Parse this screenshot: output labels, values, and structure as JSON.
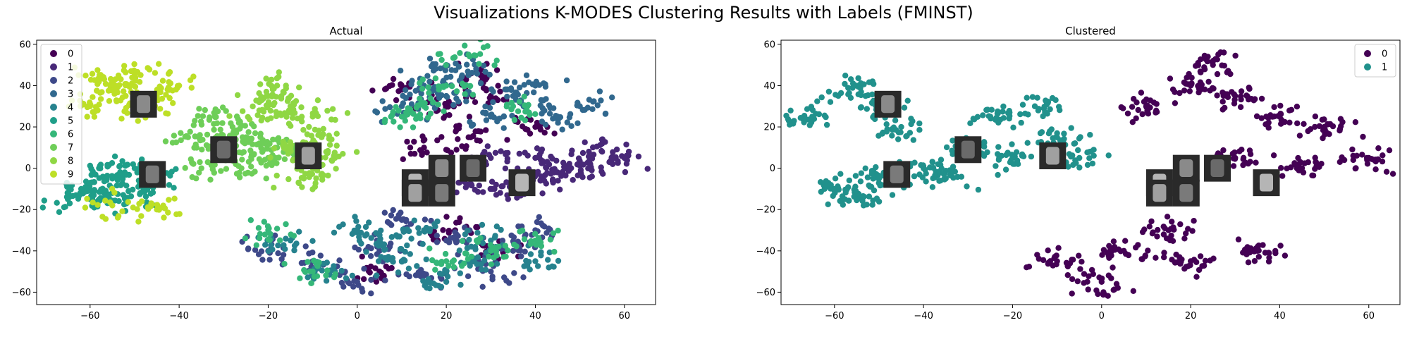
{
  "suptitle": "Visualizations K-MODES Clustering Results with Labels (FMINST)",
  "chart_data": [
    {
      "type": "scatter",
      "title": "Actual",
      "xlabel": "",
      "ylabel": "",
      "xlim": [
        -72,
        67
      ],
      "ylim": [
        -66,
        62
      ],
      "xticks": [
        -60,
        -40,
        -20,
        0,
        20,
        40,
        60
      ],
      "yticks": [
        -60,
        -40,
        -20,
        0,
        20,
        40,
        60
      ],
      "grid": false,
      "legend_position": "top-left",
      "legend": [
        "0",
        "1",
        "2",
        "3",
        "4",
        "5",
        "6",
        "7",
        "8",
        "9"
      ],
      "colors": [
        "#440154",
        "#482878",
        "#3e4989",
        "#31688e",
        "#26828e",
        "#1f9e89",
        "#35b779",
        "#6ece58",
        "#8fd744",
        "#bddf26"
      ],
      "clusters": [
        {
          "label": "0",
          "points": [
            [
              30,
              35
            ],
            [
              10,
              38
            ],
            [
              25,
              15
            ],
            [
              20,
              30
            ],
            [
              40,
              20
            ],
            [
              5,
              -50
            ],
            [
              30,
              -40
            ],
            [
              22,
              -30
            ],
            [
              15,
              10
            ],
            [
              28,
              45
            ]
          ]
        },
        {
          "label": "1",
          "points": [
            [
              30,
              5
            ],
            [
              40,
              5
            ],
            [
              50,
              3
            ],
            [
              55,
              8
            ],
            [
              60,
              5
            ],
            [
              45,
              -2
            ],
            [
              35,
              -10
            ],
            [
              25,
              -8
            ],
            [
              52,
              0
            ],
            [
              42,
              -6
            ]
          ]
        },
        {
          "label": "2",
          "points": [
            [
              5,
              -40
            ],
            [
              20,
              -35
            ],
            [
              35,
              -40
            ],
            [
              -10,
              -45
            ],
            [
              0,
              -55
            ],
            [
              30,
              -50
            ],
            [
              15,
              -52
            ],
            [
              -20,
              -40
            ],
            [
              40,
              -30
            ],
            [
              10,
              -25
            ]
          ]
        },
        {
          "label": "3",
          "points": [
            [
              10,
              30
            ],
            [
              20,
              35
            ],
            [
              35,
              35
            ],
            [
              45,
              25
            ],
            [
              25,
              45
            ],
            [
              15,
              40
            ],
            [
              50,
              30
            ],
            [
              30,
              25
            ],
            [
              40,
              40
            ],
            [
              20,
              50
            ]
          ]
        },
        {
          "label": "4",
          "points": [
            [
              0,
              -30
            ],
            [
              10,
              -45
            ],
            [
              25,
              -45
            ],
            [
              -15,
              -35
            ],
            [
              30,
              -35
            ],
            [
              20,
              -55
            ],
            [
              -5,
              -50
            ],
            [
              40,
              -45
            ],
            [
              5,
              -35
            ],
            [
              15,
              -30
            ]
          ]
        },
        {
          "label": "5",
          "points": [
            [
              -62,
              -10
            ],
            [
              -55,
              -5
            ],
            [
              -50,
              0
            ],
            [
              -60,
              -15
            ],
            [
              -45,
              -5
            ],
            [
              -55,
              -12
            ],
            [
              -65,
              -15
            ],
            [
              -48,
              -10
            ],
            [
              -58,
              0
            ],
            [
              -52,
              -15
            ]
          ]
        },
        {
          "label": "6",
          "points": [
            [
              20,
              40
            ],
            [
              15,
              30
            ],
            [
              25,
              55
            ],
            [
              10,
              25
            ],
            [
              35,
              30
            ],
            [
              -10,
              -50
            ],
            [
              20,
              -45
            ],
            [
              -20,
              -30
            ],
            [
              30,
              -40
            ],
            [
              40,
              -35
            ]
          ]
        },
        {
          "label": "7",
          "points": [
            [
              -30,
              10
            ],
            [
              -25,
              15
            ],
            [
              -20,
              5
            ],
            [
              -35,
              0
            ],
            [
              -28,
              20
            ],
            [
              -22,
              12
            ],
            [
              -32,
              25
            ],
            [
              -18,
              10
            ],
            [
              -26,
              0
            ],
            [
              -38,
              15
            ]
          ]
        },
        {
          "label": "8",
          "points": [
            [
              -20,
              35
            ],
            [
              -15,
              30
            ],
            [
              -10,
              25
            ],
            [
              -15,
              10
            ],
            [
              -10,
              0
            ],
            [
              -5,
              5
            ],
            [
              -18,
              40
            ],
            [
              -12,
              -5
            ],
            [
              -8,
              15
            ],
            [
              -22,
              28
            ]
          ]
        },
        {
          "label": "9",
          "points": [
            [
              -55,
              40
            ],
            [
              -50,
              45
            ],
            [
              -45,
              35
            ],
            [
              -60,
              30
            ],
            [
              -48,
              28
            ],
            [
              -40,
              40
            ],
            [
              -55,
              -18
            ],
            [
              -45,
              -20
            ],
            [
              -52,
              35
            ],
            [
              -58,
              42
            ]
          ]
        }
      ]
    },
    {
      "type": "scatter",
      "title": "Clustered",
      "xlabel": "",
      "ylabel": "",
      "xlim": [
        -72,
        67
      ],
      "ylim": [
        -66,
        62
      ],
      "xticks": [
        -60,
        -40,
        -20,
        0,
        20,
        40,
        60
      ],
      "yticks": [
        -60,
        -40,
        -20,
        0,
        20,
        40,
        60
      ],
      "grid": false,
      "legend_position": "top-right",
      "legend": [
        "0",
        "1"
      ],
      "colors": [
        "#440154",
        "#21918c"
      ],
      "clusters": [
        {
          "label": "0",
          "points": [
            [
              10,
              30
            ],
            [
              20,
              40
            ],
            [
              30,
              35
            ],
            [
              40,
              25
            ],
            [
              50,
              20
            ],
            [
              30,
              5
            ],
            [
              45,
              0
            ],
            [
              60,
              5
            ],
            [
              5,
              -40
            ],
            [
              20,
              -45
            ],
            [
              35,
              -40
            ],
            [
              -10,
              -45
            ],
            [
              0,
              -55
            ],
            [
              25,
              50
            ],
            [
              15,
              -30
            ]
          ]
        },
        {
          "label": "1",
          "points": [
            [
              -55,
              40
            ],
            [
              -50,
              30
            ],
            [
              -45,
              20
            ],
            [
              -30,
              10
            ],
            [
              -20,
              5
            ],
            [
              -60,
              -10
            ],
            [
              -55,
              -15
            ],
            [
              -40,
              0
            ],
            [
              -15,
              30
            ],
            [
              -10,
              15
            ],
            [
              -25,
              25
            ],
            [
              -35,
              -5
            ],
            [
              -65,
              25
            ],
            [
              -5,
              5
            ],
            [
              -50,
              -5
            ]
          ]
        }
      ]
    }
  ]
}
